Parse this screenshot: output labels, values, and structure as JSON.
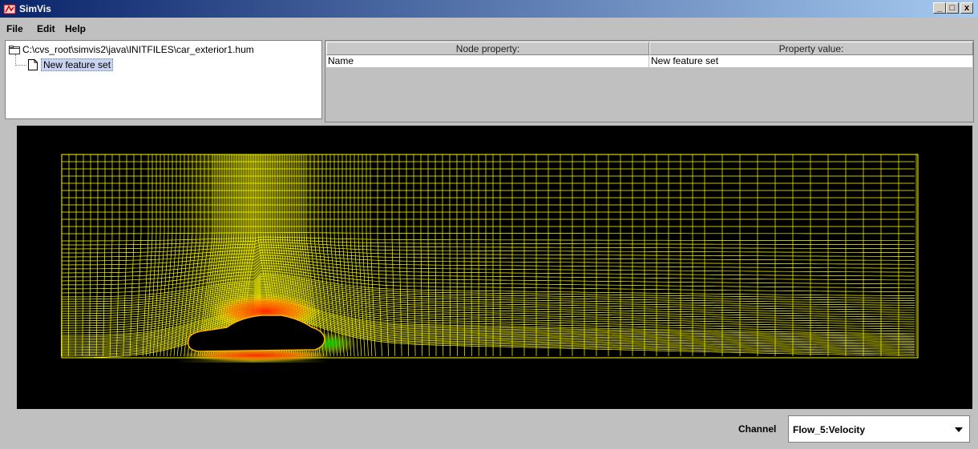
{
  "window": {
    "title": "SimVis",
    "minimize": "_",
    "maximize": "□",
    "close": "x"
  },
  "menu": {
    "file": "File",
    "edit": "Edit",
    "help": "Help"
  },
  "tree": {
    "root": "C:\\cvs_root\\simvis2\\java\\INITFILES\\car_exterior1.hum",
    "child": "New feature set"
  },
  "properties": {
    "headers": [
      "Node property:",
      "Property value:"
    ],
    "rows": [
      [
        "Name",
        "New feature set"
      ]
    ]
  },
  "visualization": {
    "mesh_color": "#ffff00",
    "background": "#000000",
    "hot_color": "#ff2a00",
    "cool_color": "#00d000"
  },
  "channel": {
    "label": "Channel",
    "value": "Flow_5:Velocity"
  }
}
